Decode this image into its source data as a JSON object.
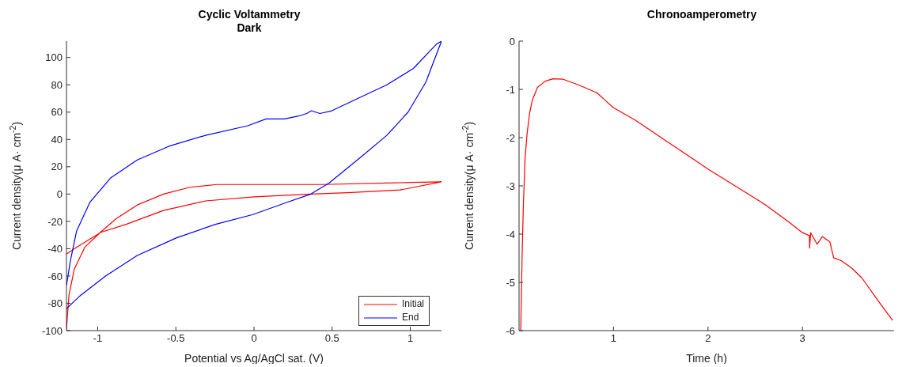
{
  "chart_data": [
    {
      "type": "line",
      "title": "Cyclic Voltammetry",
      "subtitle": "Dark",
      "xlabel": "Potential vs Ag/AgCl sat. (V)",
      "ylabel": "Current density(μ A· cm$^{-2}$)",
      "xlim": [
        -1.2,
        1.2
      ],
      "xticks": [
        -1,
        -0.5,
        0,
        0.5,
        1
      ],
      "ylim": [
        -100,
        112
      ],
      "yticks": [
        -100,
        -80,
        -60,
        -40,
        -20,
        0,
        20,
        40,
        60,
        80,
        100
      ],
      "grid": false,
      "legend": "bottom right",
      "marker": "none",
      "line_style": "solid",
      "series": [
        {
          "name": "Initial",
          "color": "#ff0000",
          "x": [
            -1.2,
            -1.184,
            -1.15,
            -1.083,
            -0.983,
            -0.882,
            -0.747,
            -0.579,
            -0.41,
            -0.24,
            0,
            0.44,
            1.2,
            0.936,
            0.6,
            0.364,
            0,
            -0.31,
            -0.58,
            -0.815,
            -0.98,
            -1.15,
            -1.2
          ],
          "values": [
            -99,
            -74,
            -55,
            -39,
            -28,
            -18,
            -8,
            0,
            5,
            7,
            7,
            7,
            9,
            3,
            1,
            0,
            -2,
            -5,
            -12,
            -22,
            -28,
            -40,
            -44
          ]
        },
        {
          "name": "End",
          "color": "#0000ff",
          "x": [
            -1.2,
            -1.175,
            -1.135,
            -1.05,
            -0.916,
            -0.747,
            -0.545,
            -0.31,
            -0.04,
            0.077,
            0.195,
            0.28,
            0.338,
            0.367,
            0.422,
            0.498,
            0.683,
            0.85,
            1.02,
            1.17,
            1.2,
            1.17,
            1.1,
            0.986,
            0.85,
            0.683,
            0.48,
            0.364,
            0.212,
            -0.007,
            -0.242,
            -0.495,
            -0.747,
            -0.95,
            -1.118,
            -1.2
          ],
          "values": [
            -67,
            -49,
            -27,
            -6,
            12,
            25,
            35,
            43,
            50,
            55,
            55,
            57,
            59,
            61,
            59,
            61,
            71,
            80,
            92,
            110,
            112,
            103,
            82,
            60,
            43,
            27,
            8,
            0,
            -6,
            -15,
            -22,
            -32,
            -45,
            -60,
            -75,
            -84
          ]
        }
      ]
    },
    {
      "type": "line",
      "title": "Chronoamperometry",
      "xlabel": "Time (h)",
      "ylabel": "Current density(μ A· cm$^{-2}$)",
      "xlim": [
        0,
        3.97
      ],
      "xticks": [
        1,
        2,
        3
      ],
      "ylim": [
        -6,
        0
      ],
      "yticks": [
        -6,
        -5,
        -4,
        -3,
        -2,
        -1,
        0
      ],
      "grid": false,
      "legend": false,
      "marker": "none",
      "line_style": "solid",
      "series": [
        {
          "color": "#ff0000",
          "x": [
            0.018,
            0.032,
            0.045,
            0.064,
            0.086,
            0.113,
            0.141,
            0.195,
            0.277,
            0.359,
            0.468,
            0.632,
            0.823,
            1.0,
            1.232,
            1.505,
            1.78,
            2.0,
            2.32,
            2.6,
            2.87,
            3.0,
            3.074,
            3.076,
            3.087,
            3.155,
            3.21,
            3.29,
            3.33,
            3.41,
            3.52,
            3.63,
            3.8,
            3.955
          ],
          "values": [
            -6,
            -4.49,
            -3.45,
            -2.42,
            -1.9,
            -1.48,
            -1.22,
            -0.96,
            -0.83,
            -0.78,
            -0.79,
            -0.91,
            -1.07,
            -1.38,
            -1.64,
            -2.0,
            -2.36,
            -2.65,
            -3.04,
            -3.38,
            -3.77,
            -3.97,
            -4.03,
            -4.29,
            -3.97,
            -4.21,
            -4.05,
            -4.16,
            -4.49,
            -4.55,
            -4.7,
            -4.91,
            -5.38,
            -5.79
          ]
        }
      ]
    }
  ]
}
